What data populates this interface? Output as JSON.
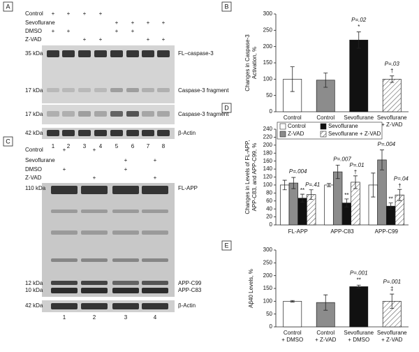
{
  "panels": {
    "A": {
      "letter": "A",
      "treatments": [
        {
          "label": "Control",
          "marks": [
            "+",
            "+",
            "+",
            "+",
            null,
            null,
            null,
            null
          ]
        },
        {
          "label": "Sevoflurane",
          "marks": [
            null,
            null,
            null,
            null,
            "+",
            "+",
            "+",
            "+"
          ]
        },
        {
          "label": "DMSO",
          "marks": [
            "+",
            "+",
            null,
            null,
            "+",
            "+",
            null,
            null
          ]
        },
        {
          "label": "Z-VAD",
          "marks": [
            null,
            null,
            "+",
            "+",
            null,
            null,
            "+",
            "+"
          ]
        }
      ],
      "blots": [
        {
          "sizes": [
            "35 kDa",
            "17 kDa"
          ],
          "names": [
            "FL–caspase-3",
            "Caspase-3 fragment"
          ]
        },
        {
          "sizes": [
            "17 kDa"
          ],
          "names": [
            "Caspase-3 fragment"
          ]
        },
        {
          "sizes": [
            "42 kDa"
          ],
          "names": [
            "β-Actin"
          ]
        }
      ],
      "lanes": [
        "1",
        "2",
        "3",
        "4",
        "5",
        "6",
        "7",
        "8"
      ]
    },
    "C": {
      "letter": "C",
      "treatments": [
        {
          "label": "Control",
          "marks": [
            "+",
            "+",
            null,
            null
          ]
        },
        {
          "label": "Sevoflurane",
          "marks": [
            null,
            null,
            "+",
            "+"
          ]
        },
        {
          "label": "DMSO",
          "marks": [
            "+",
            null,
            "+",
            null
          ]
        },
        {
          "label": "Z-VAD",
          "marks": [
            null,
            "+",
            null,
            "+"
          ]
        }
      ],
      "blots": [
        {
          "sizes": [
            "110 kDa",
            "12 kDa",
            "10 kDa"
          ],
          "names": [
            "FL-APP",
            "APP-C99",
            "APP-C83"
          ]
        },
        {
          "sizes": [
            "42 kDa"
          ],
          "names": [
            "β-Actin"
          ]
        }
      ],
      "lanes": [
        "1",
        "2",
        "3",
        "4"
      ]
    }
  },
  "chart_data": [
    {
      "type": "bar",
      "panel": "B",
      "ylabel": [
        "Changes in Caspase-3",
        "Activation, %"
      ],
      "categories": [
        [
          "Control",
          "+ DMSO"
        ],
        [
          "Control",
          "+ Z-VAD"
        ],
        [
          "Sevoflurane",
          "+ DMSO"
        ],
        [
          "Sevoflurane",
          "+ Z-VAD"
        ]
      ],
      "values": [
        100,
        97,
        220,
        100
      ],
      "errors": [
        38,
        22,
        25,
        10
      ],
      "colors": [
        "#ffffff",
        "#8c8c8c",
        "#111111",
        "#ffffff"
      ],
      "hatched": [
        false,
        false,
        false,
        true
      ],
      "marks": [
        null,
        null,
        "*",
        "†"
      ],
      "p_labels": [
        null,
        null,
        "P=.02",
        "P=.03"
      ],
      "ylim": [
        0,
        300
      ],
      "yticks": [
        0,
        50,
        100,
        150,
        200,
        250,
        300
      ]
    },
    {
      "type": "grouped-bar",
      "panel": "D",
      "ylabel": [
        "Changes in Levels of FL-APP,",
        "APP-C83, and APP-C99, %"
      ],
      "categories": [
        "FL-APP",
        "APP-C83",
        "APP-C99"
      ],
      "series": [
        {
          "name": "Control",
          "color": "#ffffff",
          "hatched": false,
          "values": [
            100,
            100,
            100
          ],
          "errors": [
            12,
            4,
            30
          ]
        },
        {
          "name": "Z-VAD",
          "color": "#8c8c8c",
          "hatched": false,
          "values": [
            105,
            133,
            163
          ],
          "errors": [
            14,
            17,
            25
          ]
        },
        {
          "name": "Sevoflurane",
          "color": "#111111",
          "hatched": false,
          "values": [
            67,
            55,
            47
          ],
          "errors": [
            10,
            10,
            8
          ],
          "marks": [
            "**",
            "**",
            "**"
          ]
        },
        {
          "name": "Sevoflurane + Z-VAD",
          "color": "#ffffff",
          "hatched": true,
          "values": [
            76,
            107,
            75
          ],
          "errors": [
            12,
            16,
            14
          ],
          "marks": [
            null,
            "†",
            "†"
          ],
          "p_labels": [
            "P=.41",
            "P=.01",
            "P=.04"
          ]
        }
      ],
      "group_labels": [
        "P=.004",
        "P=.007",
        "P=.004"
      ],
      "ylim": [
        0,
        240
      ],
      "yticks": [
        0,
        20,
        40,
        60,
        80,
        100,
        120,
        140,
        160,
        180,
        200,
        220,
        240
      ]
    },
    {
      "type": "bar",
      "panel": "E",
      "ylabel": [
        "Aβ40 Levels, %"
      ],
      "categories": [
        [
          "Control",
          "+ DMSO"
        ],
        [
          "Control",
          "+ Z-VAD"
        ],
        [
          "Sevoflurane",
          "+ DMSO"
        ],
        [
          "Sevoflurane",
          "+ Z-VAD"
        ]
      ],
      "values": [
        100,
        95,
        157,
        100
      ],
      "errors": [
        3,
        30,
        6,
        28
      ],
      "colors": [
        "#ffffff",
        "#8c8c8c",
        "#111111",
        "#ffffff"
      ],
      "hatched": [
        false,
        false,
        false,
        true
      ],
      "marks": [
        null,
        null,
        "**",
        "‡"
      ],
      "p_labels": [
        null,
        null,
        "P=.001",
        "P=.001"
      ],
      "ylim": [
        0,
        300
      ],
      "yticks": [
        0,
        50,
        100,
        150,
        200,
        250,
        300
      ]
    }
  ]
}
